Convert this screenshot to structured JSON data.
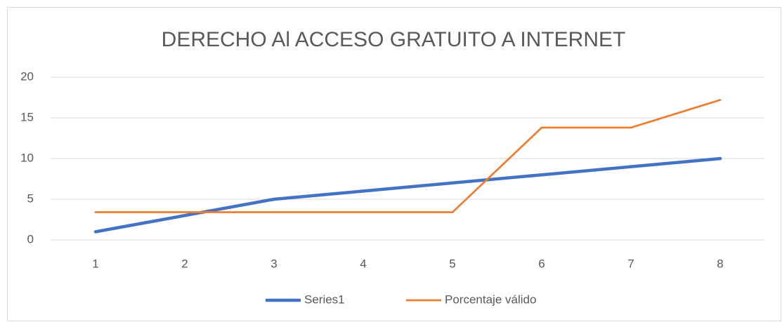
{
  "chart_data": {
    "type": "line",
    "title": "DERECHO Al ACCESO GRATUITO A INTERNET",
    "categories": [
      "1",
      "2",
      "3",
      "4",
      "5",
      "6",
      "7",
      "8"
    ],
    "series": [
      {
        "name": "Series1",
        "color": "#4472c4",
        "values": [
          1,
          3,
          5,
          6,
          7,
          8,
          9,
          10
        ]
      },
      {
        "name": "Porcentaje válido",
        "color": "#ed7d31",
        "values": [
          3.4,
          3.4,
          3.4,
          3.4,
          3.4,
          13.8,
          13.8,
          17.2
        ]
      }
    ],
    "ylim": [
      0,
      20
    ],
    "yticks": [
      0,
      5,
      10,
      15,
      20
    ],
    "grid": true,
    "legend": "bottom"
  }
}
